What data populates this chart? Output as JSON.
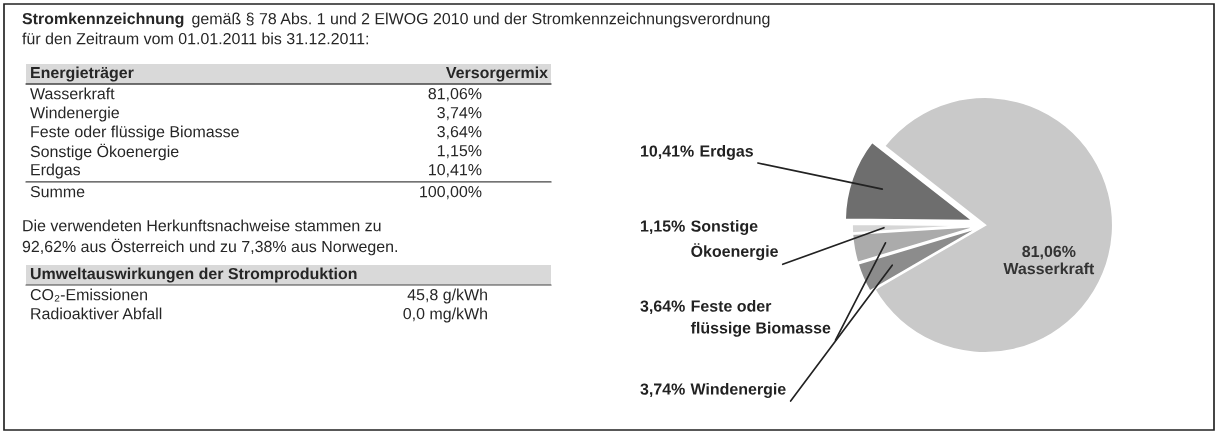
{
  "chart_data": [
    {
      "type": "other",
      "title": "Stromkennzeichnung",
      "subtitle": "gemäß § 78 Abs. 1 und 2 ElWOG 2010 und der Stromkennzeichnungsverordnung",
      "annotations": [
        "für den Zeitraum vom 01.01.2011 bis 31.12.2011:",
        "Energieträger",
        "Versorgermix",
        "Wasserkraft",
        "81,06%",
        "Windenergie",
        "3,74%",
        "Feste oder flüssige Biomasse",
        "3,64%",
        "Sonstige Ökoenergie",
        "1,15%",
        "Erdgas",
        "10,41%",
        "Summe",
        "100,00%",
        "Die verwendeten Herkunftsnachweise stammen zu",
        "92,62% aus Österreich und zu 7,38% aus Norwegen.",
        "Umweltauswirkungen der Stromproduktion",
        "CO₂-Emissionen",
        "45,8 g/kWh",
        "Radioaktiver Abfall",
        "0,0 mg/kWh"
      ]
    },
    {
      "type": "pie",
      "categories": [
        "Wasserkraft",
        "Windenergie",
        "Feste oder flüssige Biomasse",
        "Sonstige Ökoenergie",
        "Erdgas"
      ],
      "values": [
        81.06,
        3.74,
        3.64,
        1.15,
        10.41
      ],
      "value_labels": [
        "81,06%",
        "3,74%",
        "3,64%",
        "1,15%",
        "10,41%"
      ],
      "colors": [
        "#c9c9c9",
        "#8c8c8c",
        "#ababab",
        "#d6d6d6",
        "#6e6e6e"
      ]
    }
  ]
}
